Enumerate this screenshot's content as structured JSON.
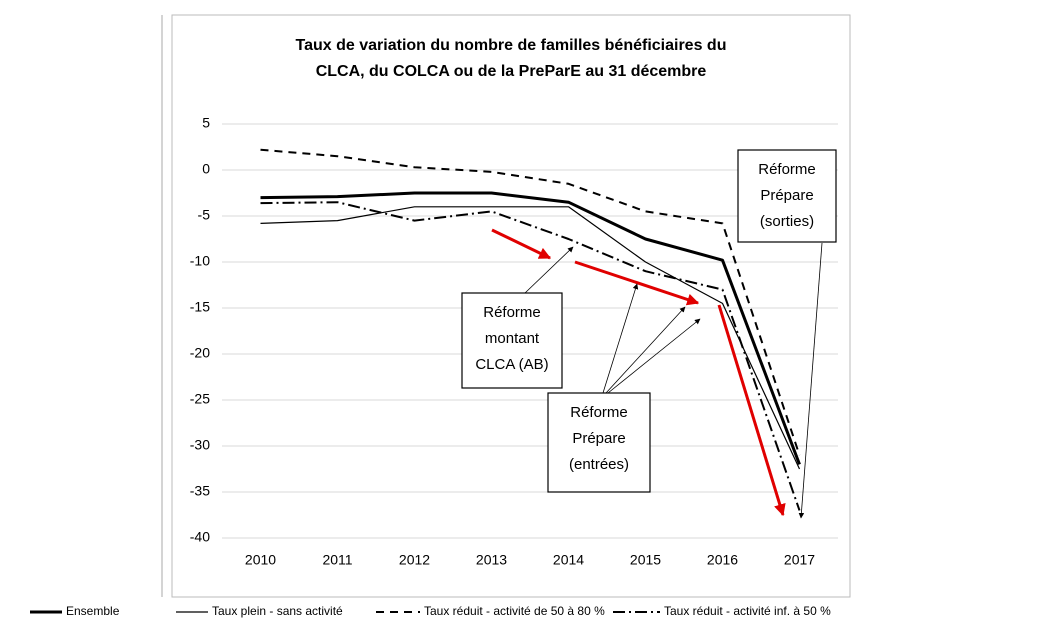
{
  "chart_data": {
    "type": "line",
    "title": [
      "Taux de variation du nombre de familles bénéficiaires du",
      "CLCA, du COLCA ou de la PreParE  au 31  décembre"
    ],
    "categories": [
      "2010",
      "2011",
      "2012",
      "2013",
      "2014",
      "2015",
      "2016",
      "2017"
    ],
    "series": [
      {
        "name": "Ensemble",
        "color": "#000000",
        "width": 3,
        "dash": "none",
        "values": [
          -3,
          -2.9,
          -2.5,
          -2.5,
          -3.5,
          -7.5,
          -9.8,
          -32
        ]
      },
      {
        "name": "Taux plein - sans activité",
        "color": "#000000",
        "width": 1.2,
        "dash": "none",
        "values": [
          -5.8,
          -5.5,
          -4,
          -4,
          -4,
          -10,
          -14.5,
          -32.5
        ]
      },
      {
        "name": "Taux réduit - activité de 50 à 80 %",
        "color": "#000000",
        "width": 2,
        "dash": "8 6",
        "values": [
          2.2,
          1.5,
          0.3,
          -0.2,
          -1.5,
          -4.5,
          -5.8,
          -31
        ]
      },
      {
        "name": "Taux réduit - activité inf. à 50 %",
        "color": "#000000",
        "width": 2,
        "dash": "12 4 2 4",
        "values": [
          -3.6,
          -3.5,
          -5.5,
          -4.5,
          -7.5,
          -11,
          -13,
          -37
        ]
      }
    ],
    "ylim": [
      -40,
      5
    ],
    "yticks": [
      -40,
      -35,
      -30,
      -25,
      -20,
      -15,
      -10,
      -5,
      0,
      5
    ],
    "grid": true,
    "annotations": [
      [
        "Réforme",
        "montant",
        "CLCA (AB)"
      ],
      [
        "Réforme",
        "Prépare",
        "(entrées)"
      ],
      [
        "Réforme",
        "Prépare",
        "(sorties)"
      ]
    ]
  }
}
